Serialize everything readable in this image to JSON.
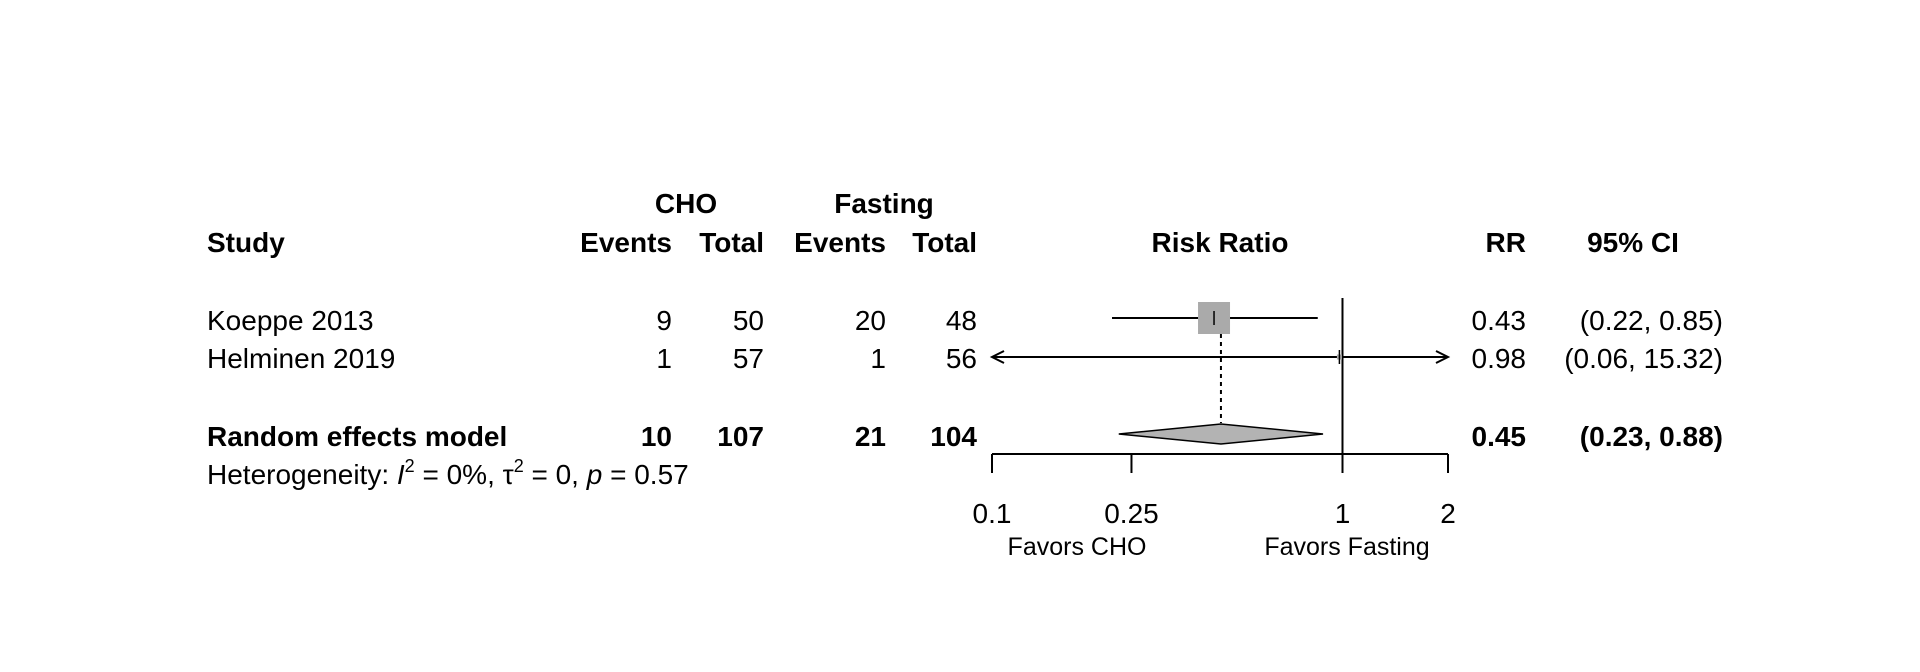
{
  "chart_data": {
    "type": "forest",
    "headers": {
      "study": "Study",
      "group1": "CHO",
      "group2": "Fasting",
      "events": "Events",
      "total": "Total",
      "plot": "Risk Ratio",
      "effect": "RR",
      "ci": "95% CI"
    },
    "studies": [
      {
        "name": "Koeppe 2013",
        "events1": "9",
        "total1": "50",
        "events2": "20",
        "total2": "48",
        "rr": 0.43,
        "lower": 0.22,
        "upper": 0.85,
        "rr_text": "0.43",
        "ci_text": "(0.22,  0.85)"
      },
      {
        "name": "Helminen 2019",
        "events1": "1",
        "total1": "57",
        "events2": "1",
        "total2": "56",
        "rr": 0.98,
        "lower": 0.06,
        "upper": 15.32,
        "rr_text": "0.98",
        "ci_text": "(0.06, 15.32)"
      }
    ],
    "pooled": {
      "name": "Random effects model",
      "events1": "10",
      "total1": "107",
      "events2": "21",
      "total2": "104",
      "rr": 0.45,
      "lower": 0.23,
      "upper": 0.88,
      "rr_text": "0.45",
      "ci_text": "(0.23,  0.88)"
    },
    "heterogeneity": {
      "prefix": "Heterogeneity: ",
      "i2_symbol": "I",
      "i2_value": " = 0%, ",
      "tau_symbol": "τ",
      "tau_value": " = 0, ",
      "p_symbol": "p",
      "p_value": " = 0.57",
      "sup": "2"
    },
    "axis": {
      "scale": "log",
      "xlim": [
        0.1,
        2
      ],
      "ticks": [
        0.1,
        0.25,
        1,
        2
      ],
      "tick_labels": [
        "0.1",
        "0.25",
        "1",
        "2"
      ],
      "null_line": 1
    },
    "favors_left": "Favors CHO",
    "favors_right": "Favors Fasting",
    "colors": {
      "square": "#aaaaaa",
      "diamond": "#b3b3b3",
      "line": "#000000"
    }
  }
}
